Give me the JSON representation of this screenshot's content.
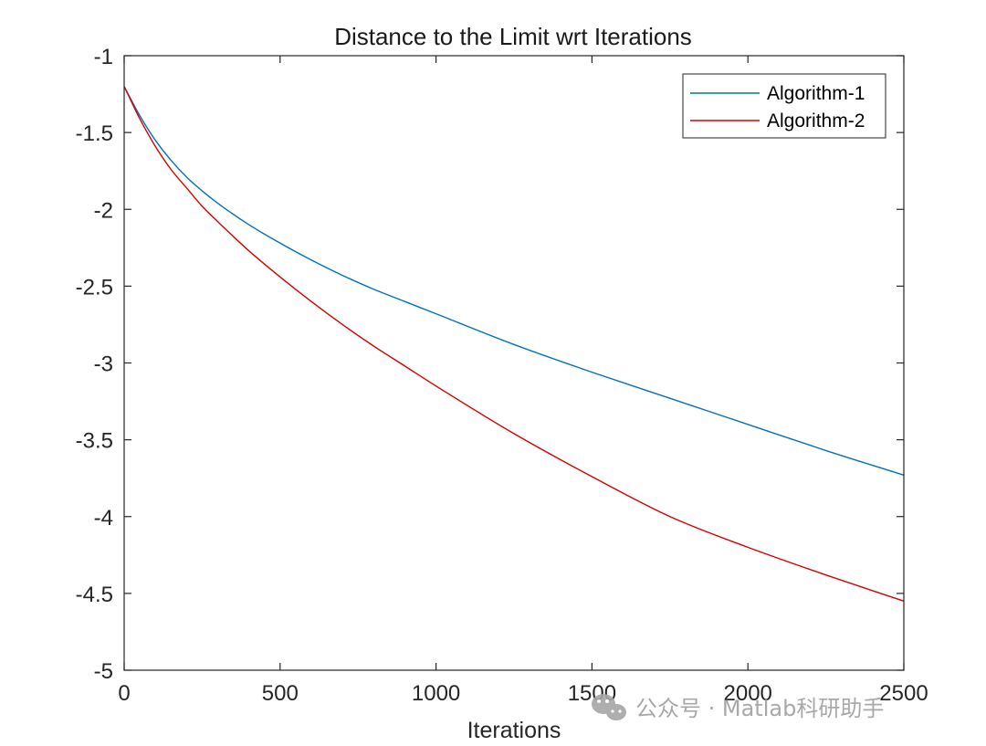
{
  "chart_data": {
    "type": "line",
    "title": "Distance to the Limit wrt Iterations",
    "xlabel": "Iterations",
    "ylabel": "",
    "xlim": [
      0,
      2500
    ],
    "ylim": [
      -5,
      -1
    ],
    "xticks": [
      0,
      500,
      1000,
      1500,
      2000,
      2500
    ],
    "yticks": [
      -1,
      -1.5,
      -2,
      -2.5,
      -3,
      -3.5,
      -4,
      -4.5,
      -5
    ],
    "xtick_labels": [
      "0",
      "500",
      "1000",
      "1500",
      "2000",
      "2500"
    ],
    "ytick_labels": [
      "-1",
      "-1.5",
      "-2",
      "-2.5",
      "-3",
      "-3.5",
      "-4",
      "-4.5",
      "-5"
    ],
    "grid": false,
    "legend_position": "top-right",
    "series": [
      {
        "name": "Algorithm-1",
        "color": "#0072BD",
        "x": [
          0,
          50,
          100,
          150,
          200,
          250,
          300,
          400,
          500,
          600,
          700,
          800,
          900,
          1000,
          1250,
          1500,
          1750,
          2000,
          2250,
          2500
        ],
        "y": [
          -1.2,
          -1.39,
          -1.55,
          -1.68,
          -1.79,
          -1.88,
          -1.96,
          -2.1,
          -2.22,
          -2.33,
          -2.43,
          -2.52,
          -2.6,
          -2.68,
          -2.88,
          -3.06,
          -3.23,
          -3.4,
          -3.57,
          -3.73
        ]
      },
      {
        "name": "Algorithm-2",
        "color": "#D90000",
        "x": [
          0,
          50,
          100,
          150,
          200,
          250,
          300,
          400,
          500,
          600,
          700,
          800,
          900,
          1000,
          1250,
          1500,
          1750,
          2000,
          2250,
          2500
        ],
        "y": [
          -1.2,
          -1.41,
          -1.59,
          -1.74,
          -1.86,
          -1.98,
          -2.08,
          -2.27,
          -2.44,
          -2.6,
          -2.75,
          -2.89,
          -3.02,
          -3.15,
          -3.46,
          -3.74,
          -4.0,
          -4.2,
          -4.38,
          -4.55
        ]
      }
    ]
  },
  "watermark": {
    "text": "公众号 · Matlab科研助手",
    "icon": "wechat-icon"
  }
}
